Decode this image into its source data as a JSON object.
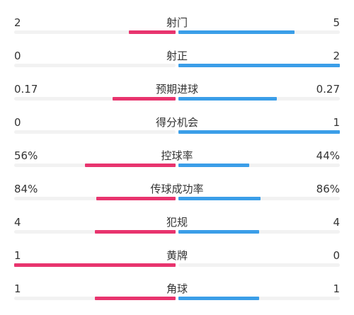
{
  "colors": {
    "home": "#e8346e",
    "away": "#3b9ee8",
    "track": "#f2f2f2",
    "text": "#333333"
  },
  "stats": [
    {
      "label": "射门",
      "home": "2",
      "away": "5",
      "home_fill": 0.29,
      "away_fill": 0.72
    },
    {
      "label": "射正",
      "home": "0",
      "away": "2",
      "home_fill": 0.0,
      "away_fill": 1.0
    },
    {
      "label": "预期进球",
      "home": "0.17",
      "away": "0.27",
      "home_fill": 0.39,
      "away_fill": 0.61
    },
    {
      "label": "得分机会",
      "home": "0",
      "away": "1",
      "home_fill": 0.0,
      "away_fill": 1.0
    },
    {
      "label": "控球率",
      "home": "56%",
      "away": "44%",
      "home_fill": 0.56,
      "away_fill": 0.44
    },
    {
      "label": "传球成功率",
      "home": "84%",
      "away": "86%",
      "home_fill": 0.49,
      "away_fill": 0.51
    },
    {
      "label": "犯规",
      "home": "4",
      "away": "4",
      "home_fill": 0.5,
      "away_fill": 0.5
    },
    {
      "label": "黄牌",
      "home": "1",
      "away": "0",
      "home_fill": 1.0,
      "away_fill": 0.0
    },
    {
      "label": "角球",
      "home": "1",
      "away": "1",
      "home_fill": 0.5,
      "away_fill": 0.5
    }
  ]
}
